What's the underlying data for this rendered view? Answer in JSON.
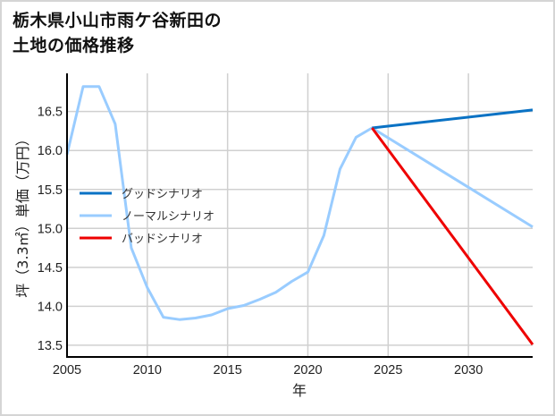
{
  "title": "栃木県小山市雨ケ谷新田の\n土地の価格推移",
  "colors": {
    "good": "#0a72c4",
    "normal": "#99ccff",
    "bad": "#ee0000",
    "grid": "#d0d0d0",
    "axis": "#000000",
    "border": "#d5d5d5"
  },
  "chart_data": {
    "type": "line",
    "title": "栃木県小山市雨ケ谷新田の土地の価格推移",
    "xlabel": "年",
    "ylabel": "坪（3.3㎡）単価（万円）",
    "xlim": [
      2005,
      2034
    ],
    "ylim": [
      13.35,
      16.99
    ],
    "grid": true,
    "legend_position": "left-center",
    "x_ticks": [
      "2005",
      "2010",
      "2015",
      "2020",
      "2025",
      "2030"
    ],
    "y_ticks": [
      "13.5",
      "14.0",
      "14.5",
      "15.0",
      "15.5",
      "16.0",
      "16.5"
    ],
    "series": [
      {
        "name": "ノーマルシナリオ",
        "color": "#99ccff",
        "x": [
          2005,
          2006,
          2007,
          2008,
          2009,
          2010,
          2011,
          2012,
          2013,
          2014,
          2015,
          2016,
          2017,
          2018,
          2019,
          2020,
          2021,
          2022,
          2023,
          2024,
          2034
        ],
        "values": [
          15.95,
          16.82,
          16.82,
          16.34,
          14.75,
          14.24,
          13.86,
          13.83,
          13.85,
          13.89,
          13.97,
          14.01,
          14.09,
          14.18,
          14.32,
          14.44,
          14.91,
          15.76,
          16.17,
          16.29,
          15.02
        ]
      },
      {
        "name": "グッドシナリオ",
        "color": "#0a72c4",
        "x": [
          2024,
          2034
        ],
        "values": [
          16.29,
          16.52
        ]
      },
      {
        "name": "バッドシナリオ",
        "color": "#ee0000",
        "x": [
          2024,
          2034
        ],
        "values": [
          16.29,
          13.51
        ]
      }
    ]
  },
  "legend": [
    {
      "label": "グッドシナリオ",
      "color": "#0a72c4"
    },
    {
      "label": "ノーマルシナリオ",
      "color": "#99ccff"
    },
    {
      "label": "バッドシナリオ",
      "color": "#ee0000"
    }
  ]
}
